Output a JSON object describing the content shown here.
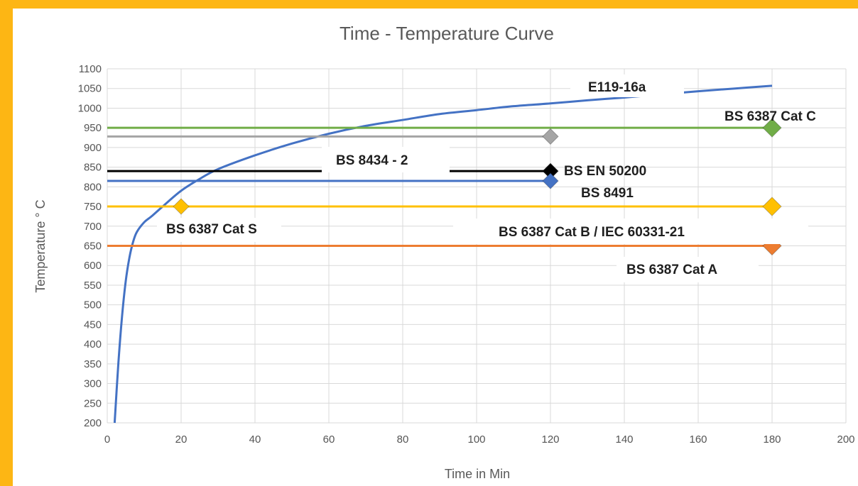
{
  "colors": {
    "frame": "#FDB614",
    "background": "#ffffff",
    "grid": "#d9d9d9",
    "text": "#595959"
  },
  "chart_data": {
    "type": "line",
    "title": "Time - Temperature Curve",
    "xlabel": "Time  in Min",
    "ylabel": "Temperature  ° C",
    "xlim": [
      0,
      200
    ],
    "ylim": [
      200,
      1100
    ],
    "x_ticks": [
      0,
      20,
      40,
      60,
      80,
      100,
      120,
      140,
      160,
      180,
      200
    ],
    "y_ticks": [
      200,
      250,
      300,
      350,
      400,
      450,
      500,
      550,
      600,
      650,
      700,
      750,
      800,
      850,
      900,
      950,
      1000,
      1050,
      1100
    ],
    "grid": true,
    "legend": "none",
    "series": [
      {
        "name": "E119-16a",
        "color": "#4472c4",
        "kind": "curve",
        "points": [
          [
            2,
            200
          ],
          [
            3,
            350
          ],
          [
            4,
            470
          ],
          [
            5,
            560
          ],
          [
            6,
            620
          ],
          [
            7,
            660
          ],
          [
            8,
            685
          ],
          [
            10,
            710
          ],
          [
            12,
            725
          ],
          [
            15,
            750
          ],
          [
            20,
            790
          ],
          [
            25,
            820
          ],
          [
            30,
            845
          ],
          [
            40,
            880
          ],
          [
            50,
            910
          ],
          [
            60,
            935
          ],
          [
            70,
            955
          ],
          [
            80,
            970
          ],
          [
            90,
            985
          ],
          [
            100,
            995
          ],
          [
            110,
            1005
          ],
          [
            120,
            1012
          ],
          [
            130,
            1020
          ],
          [
            140,
            1027
          ],
          [
            150,
            1035
          ],
          [
            160,
            1043
          ],
          [
            170,
            1050
          ],
          [
            180,
            1057
          ]
        ]
      },
      {
        "name": "BS 6387  Cat C",
        "color": "#70ad47",
        "kind": "level",
        "x": [
          0,
          180
        ],
        "y": 950,
        "marker_at": 180
      },
      {
        "name": "BS 8434  - 2",
        "color": "#a5a5a5",
        "kind": "level",
        "x": [
          0,
          120
        ],
        "y": 928,
        "marker_at": 120
      },
      {
        "name": "BS EN 50200",
        "color": "#000000",
        "kind": "level",
        "x": [
          0,
          120
        ],
        "y": 840,
        "marker_at": 120
      },
      {
        "name": "BS 8491",
        "color": "#4472c4",
        "kind": "level",
        "x": [
          0,
          120
        ],
        "y": 815,
        "marker_at": 120
      },
      {
        "name": "BS 6387  Cat S",
        "color": "#ffc000",
        "kind": "level",
        "x": [
          0,
          180
        ],
        "y": 750,
        "marker_at": 20
      },
      {
        "name": "BS 6387  Cat B / IEC 60331-21",
        "color": "#ffc000",
        "kind": "level",
        "x": [
          0,
          180
        ],
        "y": 750,
        "marker_at": 180
      },
      {
        "name": "BS 6387  Cat A",
        "color": "#ed7d31",
        "kind": "level",
        "x": [
          0,
          180
        ],
        "y": 650,
        "marker_at": 180
      }
    ],
    "annotations": [
      {
        "text": "E119-16a"
      },
      {
        "text": "BS 6387  Cat C"
      },
      {
        "text": "BS 8434  - 2"
      },
      {
        "text": "BS EN 50200"
      },
      {
        "text": "BS 8491"
      },
      {
        "text": "BS 6387  Cat S"
      },
      {
        "text": "BS 6387  Cat B / IEC 60331-21"
      },
      {
        "text": "BS 6387  Cat A"
      }
    ]
  }
}
